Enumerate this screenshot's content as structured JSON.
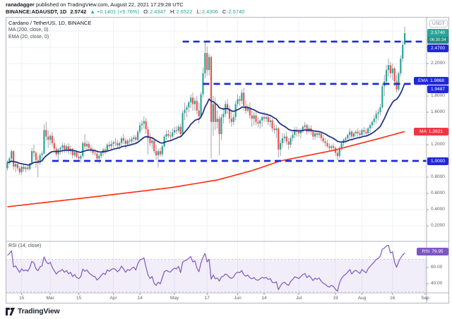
{
  "header": {
    "line1": {
      "author": "ranadagger",
      "rest": " published on TradingView.com, August 22, 2021 17:29:28 UTC"
    },
    "line2": {
      "symbol": "BINANCE:ADAUSDT, 1D",
      "price": "2.5742",
      "change": "▲ +0.1401 (+5.76%)",
      "o_label": "O:",
      "o": "2.4347",
      "h_label": "H:",
      "h": "2.6522",
      "l_label": "L:",
      "l": "2.4306",
      "c_label": "C:",
      "c": "2.5740"
    }
  },
  "legend": {
    "main": "Cardano / TetherUS, 1D, BINANCE",
    "ma": "MA (200, close, 0)",
    "ema": "EMA (20, close, 0)",
    "rsi": "RSI (14, close)"
  },
  "price_axis": {
    "currency": "USDT",
    "last_price": "2.5740",
    "countdown": "06:30:34",
    "levels": {
      "resistance": "2.4700",
      "ema_label": "EMA",
      "ema_value": "1.9868",
      "mid": "1.9487",
      "ma_label": "MA",
      "ma_value": "1.3621",
      "support": "1.0000"
    },
    "ticks": [
      "2.4000",
      "2.2000",
      "1.8000",
      "1.6000",
      "1.2000",
      "0.8000",
      "0.6000",
      "0.4000",
      "0.2000"
    ]
  },
  "rsi_axis": {
    "badge_label": "RSI",
    "badge_value": "79.95",
    "ticks": [
      "60.00",
      "40.00"
    ]
  },
  "time_axis": {
    "ticks": [
      {
        "label": "15",
        "index": 7
      },
      {
        "label": "Mar",
        "index": 21
      },
      {
        "label": "15",
        "index": 35
      },
      {
        "label": "Apr",
        "index": 52
      },
      {
        "label": "14",
        "index": 65
      },
      {
        "label": "May",
        "index": 82
      },
      {
        "label": "17",
        "index": 98
      },
      {
        "label": "Jun",
        "index": 113
      },
      {
        "label": "14",
        "index": 126
      },
      {
        "label": "Jul",
        "index": 143
      },
      {
        "label": "19",
        "index": 161
      },
      {
        "label": "Aug",
        "index": 174
      },
      {
        "label": "16",
        "index": 189
      },
      {
        "label": "Sep",
        "index": 205
      }
    ]
  },
  "footer": {
    "brand": "TradingView"
  },
  "colors": {
    "up": "#26a69a",
    "down": "#ef5350",
    "wick": "#8b8f99",
    "ema": "#1b2d84",
    "ma": "#ff3318",
    "level": "#2028d8",
    "rsi": "#7e57c2",
    "rsi_band": "rgba(126,87,194,0.10)",
    "rsi_band_border": "rgba(126,87,194,0.45)",
    "last_badge": "#26a69a",
    "countdown": "#1f8a80",
    "ma_badge": "#f23645",
    "grid": "#eef1f6",
    "border": "#b2b5be",
    "tick_text": "#5a5e69",
    "accent_text": "#26a69a"
  },
  "chart_data": {
    "type": "candlestick",
    "symbol": "BINANCE:ADAUSDT",
    "timeframe": "1D",
    "start_date": "2021-02-08",
    "end_date": "2021-08-22",
    "price_axis_range": [
      0.01,
      2.77
    ],
    "horizontal_levels": [
      {
        "value": 2.47,
        "from_index": 86
      },
      {
        "value": 1.9487,
        "from_index": 96
      },
      {
        "value": 1.0,
        "from_index": 22
      }
    ],
    "overlays": [
      {
        "name": "EMA 20",
        "type": "ema",
        "period": 20,
        "last": 1.9868
      },
      {
        "name": "MA 200",
        "type": "sma",
        "period": 200,
        "last": 1.3621,
        "anchor_points": [
          [
            0,
            0.435
          ],
          [
            40,
            0.55
          ],
          [
            80,
            0.67
          ],
          [
            103,
            0.765
          ],
          [
            120,
            0.88
          ],
          [
            134,
            1.0
          ],
          [
            160,
            1.13
          ],
          [
            180,
            1.26
          ],
          [
            195,
            1.3621
          ]
        ]
      }
    ],
    "rsi": {
      "period": 14,
      "last": 79.95,
      "band": [
        30,
        70
      ],
      "axis_ticks": [
        40,
        60
      ],
      "seed_avg_gain": 0.03,
      "seed_avg_loss": 0.01
    },
    "candles": [
      [
        0.91,
        1.01,
        0.88,
        0.98
      ],
      [
        0.98,
        1.05,
        0.95,
        1.03
      ],
      [
        1.03,
        1.14,
        0.98,
        1.12
      ],
      [
        1.12,
        1.13,
        0.89,
        0.93
      ],
      [
        0.93,
        0.99,
        0.86,
        0.96
      ],
      [
        0.96,
        0.98,
        0.88,
        0.91
      ],
      [
        0.91,
        0.94,
        0.83,
        0.86
      ],
      [
        0.86,
        0.95,
        0.83,
        0.93
      ],
      [
        0.93,
        0.96,
        0.87,
        0.9
      ],
      [
        0.9,
        0.94,
        0.86,
        0.92
      ],
      [
        0.92,
        0.95,
        0.88,
        0.9
      ],
      [
        0.9,
        0.98,
        0.88,
        0.97
      ],
      [
        0.97,
        1.16,
        0.95,
        1.12
      ],
      [
        1.12,
        1.2,
        1.05,
        1.1
      ],
      [
        1.1,
        1.12,
        0.91,
        1.01
      ],
      [
        1.01,
        1.06,
        0.8,
        0.98
      ],
      [
        0.98,
        1.1,
        0.95,
        1.07
      ],
      [
        1.07,
        1.12,
        1.0,
        1.09
      ],
      [
        1.09,
        1.45,
        1.08,
        1.38
      ],
      [
        1.38,
        1.48,
        1.25,
        1.3
      ],
      [
        1.3,
        1.38,
        1.16,
        1.26
      ],
      [
        1.26,
        1.33,
        1.2,
        1.31
      ],
      [
        1.31,
        1.36,
        1.18,
        1.22
      ],
      [
        1.22,
        1.28,
        1.13,
        1.15
      ],
      [
        1.15,
        1.18,
        1.05,
        1.08
      ],
      [
        1.08,
        1.16,
        0.99,
        1.14
      ],
      [
        1.14,
        1.18,
        1.08,
        1.16
      ],
      [
        1.16,
        1.22,
        1.1,
        1.19
      ],
      [
        1.19,
        1.22,
        1.1,
        1.14
      ],
      [
        1.14,
        1.2,
        1.1,
        1.18
      ],
      [
        1.18,
        1.22,
        1.08,
        1.12
      ],
      [
        1.12,
        1.19,
        1.08,
        1.15
      ],
      [
        1.15,
        1.16,
        1.03,
        1.07
      ],
      [
        1.07,
        1.13,
        1.04,
        1.11
      ],
      [
        1.11,
        1.13,
        1.03,
        1.05
      ],
      [
        1.05,
        1.1,
        0.99,
        1.03
      ],
      [
        1.03,
        1.08,
        0.98,
        1.06
      ],
      [
        1.06,
        1.24,
        1.04,
        1.22
      ],
      [
        1.22,
        1.33,
        1.14,
        1.18
      ],
      [
        1.18,
        1.25,
        1.14,
        1.21
      ],
      [
        1.21,
        1.24,
        1.13,
        1.16
      ],
      [
        1.16,
        1.2,
        1.1,
        1.13
      ],
      [
        1.13,
        1.17,
        1.07,
        1.1
      ],
      [
        1.1,
        1.15,
        1.06,
        1.09
      ],
      [
        1.09,
        1.13,
        1.0,
        1.03
      ],
      [
        1.03,
        1.09,
        0.97,
        1.06
      ],
      [
        1.06,
        1.12,
        1.03,
        1.1
      ],
      [
        1.1,
        1.16,
        1.06,
        1.14
      ],
      [
        1.14,
        1.17,
        1.08,
        1.12
      ],
      [
        1.12,
        1.22,
        1.1,
        1.2
      ],
      [
        1.2,
        1.24,
        1.15,
        1.18
      ],
      [
        1.18,
        1.25,
        1.14,
        1.21
      ],
      [
        1.21,
        1.25,
        1.16,
        1.23
      ],
      [
        1.23,
        1.28,
        1.18,
        1.22
      ],
      [
        1.22,
        1.26,
        1.15,
        1.19
      ],
      [
        1.19,
        1.24,
        1.14,
        1.22
      ],
      [
        1.22,
        1.3,
        1.18,
        1.28
      ],
      [
        1.28,
        1.33,
        1.21,
        1.25
      ],
      [
        1.25,
        1.28,
        1.15,
        1.21
      ],
      [
        1.21,
        1.27,
        1.18,
        1.25
      ],
      [
        1.25,
        1.28,
        1.2,
        1.24
      ],
      [
        1.24,
        1.3,
        1.21,
        1.27
      ],
      [
        1.27,
        1.32,
        1.23,
        1.29
      ],
      [
        1.29,
        1.32,
        1.22,
        1.26
      ],
      [
        1.26,
        1.38,
        1.24,
        1.36
      ],
      [
        1.36,
        1.48,
        1.33,
        1.44
      ],
      [
        1.44,
        1.5,
        1.38,
        1.46
      ],
      [
        1.46,
        1.55,
        1.4,
        1.49
      ],
      [
        1.49,
        1.53,
        1.33,
        1.39
      ],
      [
        1.39,
        1.42,
        1.08,
        1.28
      ],
      [
        1.28,
        1.34,
        1.18,
        1.22
      ],
      [
        1.22,
        1.28,
        1.15,
        1.25
      ],
      [
        1.25,
        1.28,
        1.09,
        1.12
      ],
      [
        1.12,
        1.2,
        1.01,
        1.07
      ],
      [
        1.07,
        1.15,
        0.92,
        1.12
      ],
      [
        1.12,
        1.16,
        1.05,
        1.08
      ],
      [
        1.08,
        1.2,
        1.05,
        1.18
      ],
      [
        1.18,
        1.32,
        1.16,
        1.3
      ],
      [
        1.3,
        1.38,
        1.26,
        1.33
      ],
      [
        1.33,
        1.38,
        1.28,
        1.31
      ],
      [
        1.31,
        1.36,
        1.26,
        1.3
      ],
      [
        1.3,
        1.4,
        1.28,
        1.35
      ],
      [
        1.35,
        1.42,
        1.32,
        1.38
      ],
      [
        1.38,
        1.43,
        1.33,
        1.37
      ],
      [
        1.37,
        1.45,
        1.34,
        1.42
      ],
      [
        1.42,
        1.46,
        1.29,
        1.33
      ],
      [
        1.33,
        1.62,
        1.31,
        1.59
      ],
      [
        1.59,
        1.72,
        1.5,
        1.63
      ],
      [
        1.63,
        1.69,
        1.54,
        1.66
      ],
      [
        1.66,
        1.74,
        1.6,
        1.72
      ],
      [
        1.72,
        1.82,
        1.65,
        1.78
      ],
      [
        1.78,
        1.84,
        1.62,
        1.7
      ],
      [
        1.7,
        1.78,
        1.62,
        1.74
      ],
      [
        1.74,
        1.8,
        1.58,
        1.62
      ],
      [
        1.62,
        1.72,
        1.46,
        1.55
      ],
      [
        1.55,
        1.85,
        1.52,
        1.82
      ],
      [
        1.82,
        2.15,
        1.78,
        2.08
      ],
      [
        2.08,
        2.47,
        2.02,
        2.33
      ],
      [
        2.33,
        2.41,
        2.05,
        2.12
      ],
      [
        2.12,
        2.32,
        2.05,
        2.28
      ],
      [
        2.28,
        2.3,
        1.03,
        1.48
      ],
      [
        1.48,
        1.8,
        1.31,
        1.7
      ],
      [
        1.7,
        1.78,
        1.38,
        1.48
      ],
      [
        1.48,
        1.62,
        1.4,
        1.52
      ],
      [
        1.52,
        1.56,
        1.07,
        1.33
      ],
      [
        1.33,
        1.58,
        1.26,
        1.54
      ],
      [
        1.54,
        1.66,
        1.46,
        1.58
      ],
      [
        1.58,
        1.74,
        1.54,
        1.7
      ],
      [
        1.7,
        1.76,
        1.58,
        1.64
      ],
      [
        1.64,
        1.68,
        1.46,
        1.52
      ],
      [
        1.52,
        1.62,
        1.42,
        1.48
      ],
      [
        1.48,
        1.58,
        1.44,
        1.54
      ],
      [
        1.54,
        1.74,
        1.5,
        1.7
      ],
      [
        1.7,
        1.82,
        1.66,
        1.76
      ],
      [
        1.76,
        1.8,
        1.68,
        1.74
      ],
      [
        1.74,
        1.88,
        1.7,
        1.84
      ],
      [
        1.84,
        1.9,
        1.62,
        1.68
      ],
      [
        1.68,
        1.74,
        1.58,
        1.62
      ],
      [
        1.62,
        1.7,
        1.6,
        1.66
      ],
      [
        1.66,
        1.72,
        1.52,
        1.56
      ],
      [
        1.56,
        1.62,
        1.42,
        1.52
      ],
      [
        1.52,
        1.6,
        1.44,
        1.56
      ],
      [
        1.56,
        1.6,
        1.44,
        1.48
      ],
      [
        1.48,
        1.54,
        1.42,
        1.46
      ],
      [
        1.46,
        1.52,
        1.4,
        1.5
      ],
      [
        1.5,
        1.56,
        1.42,
        1.54
      ],
      [
        1.54,
        1.6,
        1.48,
        1.52
      ],
      [
        1.52,
        1.58,
        1.48,
        1.54
      ],
      [
        1.54,
        1.56,
        1.44,
        1.48
      ],
      [
        1.48,
        1.54,
        1.42,
        1.5
      ],
      [
        1.5,
        1.52,
        1.36,
        1.4
      ],
      [
        1.4,
        1.46,
        1.34,
        1.38
      ],
      [
        1.38,
        1.44,
        1.28,
        1.4
      ],
      [
        1.4,
        1.42,
        1.04,
        1.14
      ],
      [
        1.14,
        1.26,
        1.06,
        1.22
      ],
      [
        1.22,
        1.34,
        1.16,
        1.28
      ],
      [
        1.28,
        1.34,
        1.22,
        1.3
      ],
      [
        1.3,
        1.36,
        1.2,
        1.24
      ],
      [
        1.24,
        1.28,
        1.14,
        1.2
      ],
      [
        1.2,
        1.3,
        1.16,
        1.28
      ],
      [
        1.28,
        1.36,
        1.24,
        1.32
      ],
      [
        1.32,
        1.42,
        1.28,
        1.38
      ],
      [
        1.38,
        1.42,
        1.3,
        1.36
      ],
      [
        1.36,
        1.4,
        1.3,
        1.34
      ],
      [
        1.34,
        1.4,
        1.28,
        1.38
      ],
      [
        1.38,
        1.44,
        1.34,
        1.42
      ],
      [
        1.42,
        1.48,
        1.38,
        1.44
      ],
      [
        1.44,
        1.46,
        1.32,
        1.36
      ],
      [
        1.36,
        1.44,
        1.34,
        1.4
      ],
      [
        1.4,
        1.44,
        1.32,
        1.36
      ],
      [
        1.36,
        1.38,
        1.26,
        1.3
      ],
      [
        1.3,
        1.36,
        1.26,
        1.34
      ],
      [
        1.34,
        1.36,
        1.28,
        1.32
      ],
      [
        1.32,
        1.36,
        1.28,
        1.34
      ],
      [
        1.34,
        1.36,
        1.24,
        1.28
      ],
      [
        1.28,
        1.32,
        1.22,
        1.24
      ],
      [
        1.24,
        1.28,
        1.18,
        1.22
      ],
      [
        1.22,
        1.26,
        1.16,
        1.18
      ],
      [
        1.18,
        1.22,
        1.12,
        1.16
      ],
      [
        1.16,
        1.2,
        1.12,
        1.18
      ],
      [
        1.18,
        1.22,
        1.14,
        1.16
      ],
      [
        1.16,
        1.18,
        1.06,
        1.1
      ],
      [
        1.1,
        1.14,
        1.01,
        1.06
      ],
      [
        1.06,
        1.18,
        1.03,
        1.16
      ],
      [
        1.16,
        1.24,
        1.12,
        1.22
      ],
      [
        1.22,
        1.28,
        1.18,
        1.26
      ],
      [
        1.26,
        1.3,
        1.22,
        1.28
      ],
      [
        1.28,
        1.34,
        1.24,
        1.32
      ],
      [
        1.32,
        1.4,
        1.26,
        1.36
      ],
      [
        1.36,
        1.38,
        1.26,
        1.3
      ],
      [
        1.3,
        1.36,
        1.26,
        1.34
      ],
      [
        1.34,
        1.38,
        1.3,
        1.36
      ],
      [
        1.36,
        1.4,
        1.3,
        1.34
      ],
      [
        1.34,
        1.38,
        1.28,
        1.32
      ],
      [
        1.32,
        1.4,
        1.3,
        1.38
      ],
      [
        1.38,
        1.42,
        1.32,
        1.36
      ],
      [
        1.36,
        1.4,
        1.3,
        1.34
      ],
      [
        1.34,
        1.42,
        1.32,
        1.4
      ],
      [
        1.4,
        1.46,
        1.34,
        1.44
      ],
      [
        1.44,
        1.5,
        1.4,
        1.48
      ],
      [
        1.48,
        1.56,
        1.44,
        1.52
      ],
      [
        1.52,
        1.62,
        1.46,
        1.58
      ],
      [
        1.58,
        1.64,
        1.5,
        1.6
      ],
      [
        1.6,
        1.7,
        1.56,
        1.66
      ],
      [
        1.66,
        1.96,
        1.64,
        1.92
      ],
      [
        1.92,
        2.06,
        1.8,
        1.98
      ],
      [
        1.98,
        2.18,
        1.94,
        2.12
      ],
      [
        2.12,
        2.26,
        2.04,
        2.18
      ],
      [
        2.18,
        2.22,
        2.02,
        2.08
      ],
      [
        2.08,
        2.2,
        2.0,
        2.14
      ],
      [
        2.14,
        2.16,
        1.92,
        1.98
      ],
      [
        1.98,
        2.06,
        1.84,
        1.88
      ],
      [
        1.88,
        2.1,
        1.86,
        2.08
      ],
      [
        2.08,
        2.3,
        2.04,
        2.26
      ],
      [
        2.26,
        2.48,
        2.22,
        2.43
      ],
      [
        2.4347,
        2.6522,
        2.4306,
        2.574
      ]
    ]
  }
}
